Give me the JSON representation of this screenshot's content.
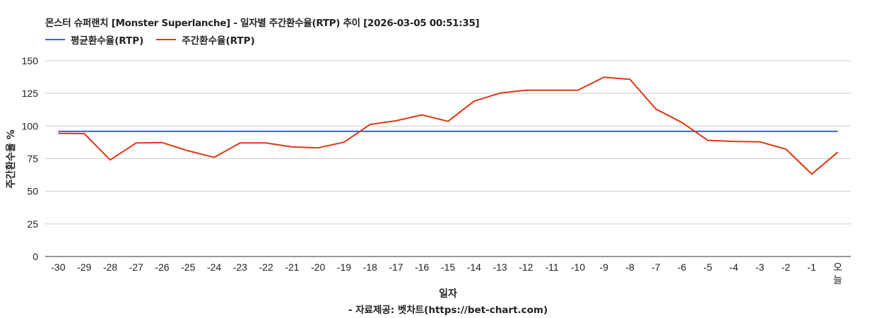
{
  "title": "몬스터 슈퍼랜치 [Monster Superlanche] - 일자별 주간환수율(RTP) 추이 [2026-03-05 00:51:35]",
  "legend": [
    {
      "label": "평균환수율(RTP)",
      "color": "#3366cc"
    },
    {
      "label": "주간환수율(RTP)",
      "color": "#dc3912"
    }
  ],
  "x_axis_title": "일자",
  "y_axis_title": "주간환수율 %",
  "source": "- 자료제공: 벳차트(https://bet-chart.com)",
  "chart_data": {
    "type": "line",
    "title": "몬스터 슈퍼랜치 [Monster Superlanche] - 일자별 주간환수율(RTP) 추이 [2026-03-05 00:51:35]",
    "xlabel": "일자",
    "ylabel": "주간환수율 %",
    "ylim": [
      0,
      150
    ],
    "yticks": [
      0,
      25,
      50,
      75,
      100,
      125,
      150
    ],
    "grid": true,
    "legend_position": "top",
    "categories": [
      "-30",
      "-29",
      "-28",
      "-27",
      "-26",
      "-25",
      "-24",
      "-23",
      "-22",
      "-21",
      "-20",
      "-19",
      "-18",
      "-17",
      "-16",
      "-15",
      "-14",
      "-13",
      "-12",
      "-11",
      "-10",
      "-9",
      "-8",
      "-7",
      "-6",
      "-5",
      "-4",
      "-3",
      "-2",
      "-1",
      "오늘"
    ],
    "series": [
      {
        "name": "평균환수율(RTP)",
        "color": "#3366cc",
        "values": [
          95.9,
          95.9,
          95.9,
          95.9,
          95.9,
          95.9,
          95.9,
          95.9,
          95.9,
          95.9,
          95.9,
          95.9,
          95.9,
          95.9,
          95.9,
          95.9,
          95.9,
          95.9,
          95.9,
          95.9,
          95.9,
          95.9,
          95.9,
          95.9,
          95.9,
          95.9,
          95.9,
          95.9,
          95.9,
          95.9,
          95.9
        ]
      },
      {
        "name": "주간환수율(RTP)",
        "color": "#dc3912",
        "values": [
          94.4,
          94.2,
          74.0,
          87.0,
          87.3,
          81.0,
          76.0,
          87.0,
          87.0,
          84.0,
          83.3,
          87.6,
          101.2,
          104.0,
          108.5,
          103.6,
          119.0,
          125.2,
          127.5,
          127.5,
          127.5,
          137.4,
          135.8,
          113.0,
          102.7,
          89.0,
          88.2,
          87.9,
          82.3,
          63.2,
          80.0
        ]
      }
    ]
  }
}
